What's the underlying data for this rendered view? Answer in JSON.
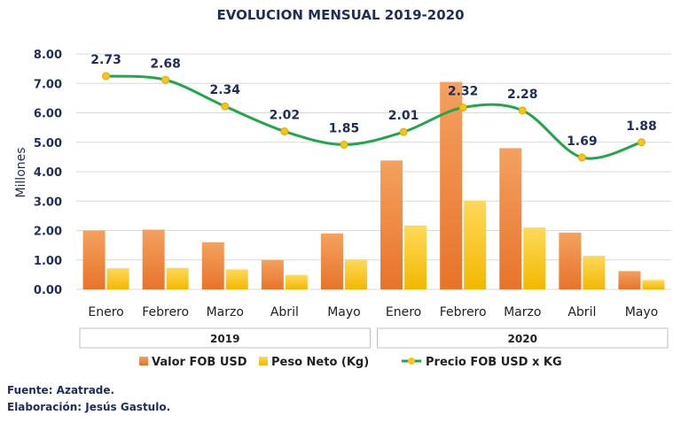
{
  "chart_data": {
    "type": "bar",
    "title": "EVOLUCION MENSUAL 2019-2020",
    "ylabel": "Millones",
    "ylim": [
      0,
      8
    ],
    "yticks": [
      "0.00",
      "1.00",
      "2.00",
      "3.00",
      "4.00",
      "5.00",
      "6.00",
      "7.00",
      "8.00"
    ],
    "categories": [
      "Enero",
      "Febrero",
      "Marzo",
      "Abril",
      "Mayo",
      "Enero",
      "Febrero",
      "Marzo",
      "Abril",
      "Mayo"
    ],
    "groups": [
      {
        "label": "2019",
        "count": 5
      },
      {
        "label": "2020",
        "count": 5
      }
    ],
    "series": [
      {
        "name": "Valor FOB USD",
        "kind": "bar",
        "color": "#ed7d31",
        "values": [
          2.0,
          2.03,
          1.6,
          1.0,
          1.9,
          4.38,
          7.05,
          4.8,
          1.93,
          0.62
        ]
      },
      {
        "name": "Peso Neto (Kg)",
        "kind": "bar",
        "color": "#ffc000",
        "values": [
          0.72,
          0.73,
          0.68,
          0.49,
          1.02,
          2.17,
          3.02,
          2.1,
          1.14,
          0.32
        ]
      },
      {
        "name": "Precio FOB USD x KG",
        "kind": "line",
        "color": "#22a64a",
        "marker_color": "#f5c518",
        "values": [
          7.25,
          7.12,
          6.22,
          5.37,
          4.92,
          5.35,
          6.18,
          6.08,
          4.48,
          5.0
        ],
        "data_labels": [
          "2.73",
          "2.68",
          "2.34",
          "2.02",
          "1.85",
          "2.01",
          "2.32",
          "2.28",
          "1.69",
          "1.88"
        ]
      }
    ],
    "grid": true,
    "legend": "bottom"
  },
  "notes": {
    "source": "Fuente: Azatrade.",
    "author": "Elaboración: Jesús Gastulo."
  }
}
